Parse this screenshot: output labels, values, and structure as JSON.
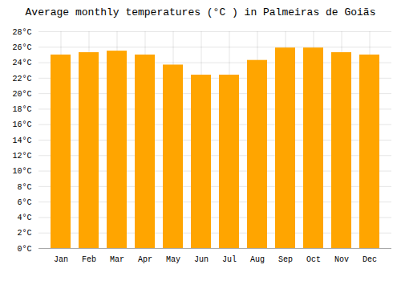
{
  "chart_data": {
    "type": "bar",
    "title": "Average monthly temperatures (°C ) in Palmeiras de Goiãs",
    "categories": [
      "Jan",
      "Feb",
      "Mar",
      "Apr",
      "May",
      "Jun",
      "Jul",
      "Aug",
      "Sep",
      "Oct",
      "Nov",
      "Dec"
    ],
    "values": [
      25.0,
      25.3,
      25.5,
      25.0,
      23.7,
      22.4,
      22.4,
      24.3,
      25.9,
      25.9,
      25.3,
      25.0
    ],
    "color": "#FFA500",
    "ylim": [
      0,
      28
    ],
    "yticks": [
      {
        "value": 0,
        "label": "0°C"
      },
      {
        "value": 2,
        "label": "2°C"
      },
      {
        "value": 4,
        "label": "4°C"
      },
      {
        "value": 6,
        "label": "6°C"
      },
      {
        "value": 8,
        "label": "8°C"
      },
      {
        "value": 10,
        "label": "10°C"
      },
      {
        "value": 12,
        "label": "12°C"
      },
      {
        "value": 14,
        "label": "14°C"
      },
      {
        "value": 16,
        "label": "16°C"
      },
      {
        "value": 18,
        "label": "18°C"
      },
      {
        "value": 20,
        "label": "20°C"
      },
      {
        "value": 22,
        "label": "22°C"
      },
      {
        "value": 24,
        "label": "24°C"
      },
      {
        "value": 26,
        "label": "26°C"
      },
      {
        "value": 28,
        "label": "28°C"
      }
    ],
    "grid": true
  }
}
